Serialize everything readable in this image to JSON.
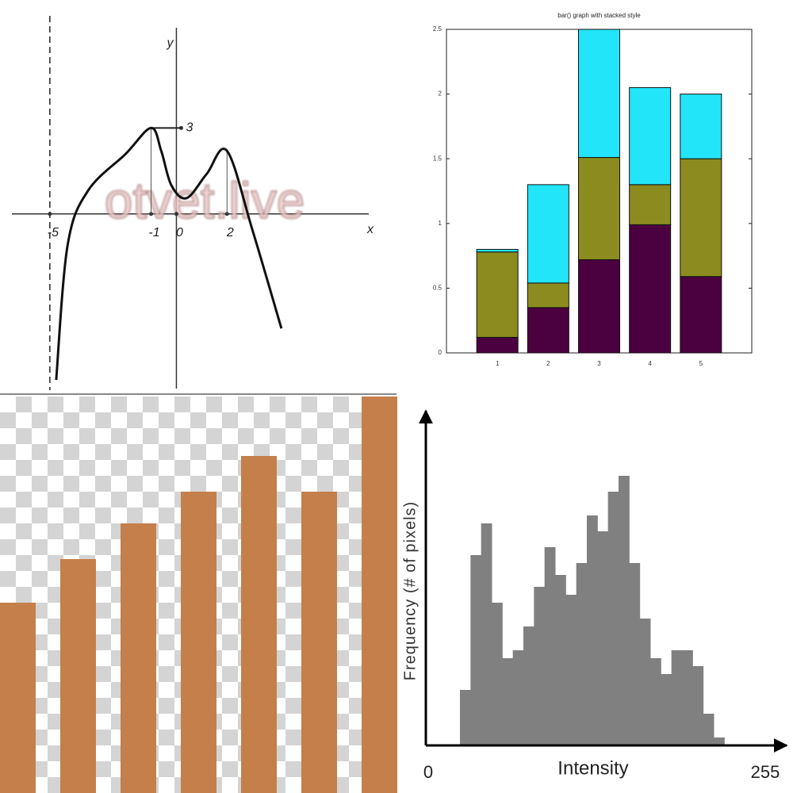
{
  "chart_data": [
    {
      "type": "line",
      "x_label": "x",
      "y_label": "y",
      "watermark": "otvet.live",
      "x": [
        -4.75,
        -4.3,
        -3.5,
        -2,
        -1,
        -0.6,
        -0.2,
        0.4,
        1.2,
        2,
        3,
        4.15
      ],
      "values": [
        -5.8,
        -1.1,
        0.8,
        2.1,
        3,
        2.2,
        1.0,
        0.55,
        1.4,
        2.2,
        -0.55,
        -4.0
      ],
      "color": "#111111",
      "xlim": [
        -6.5,
        7.6
      ],
      "ylim": [
        -6.1,
        6.5
      ],
      "xticks": [
        -5,
        -1,
        0,
        2
      ],
      "yticks": [
        3
      ],
      "asymptote_x": -5
    },
    {
      "type": "bar",
      "stacked": true,
      "title": "bar() graph with stacked style",
      "categories": [
        "1",
        "2",
        "3",
        "4",
        "5"
      ],
      "series": [
        {
          "color": "#4b003f",
          "values": [
            0.12,
            0.35,
            0.72,
            0.99,
            0.59
          ]
        },
        {
          "color": "#8b8b1f",
          "values": [
            0.66,
            0.19,
            0.79,
            0.31,
            0.91
          ]
        },
        {
          "color": "#22e5fa",
          "values": [
            0.02,
            0.76,
            0.99,
            0.75,
            0.5
          ]
        }
      ],
      "ylim": [
        0,
        2.5
      ],
      "yticks": [
        0,
        0.5,
        1,
        1.5,
        2,
        2.5
      ]
    },
    {
      "type": "bar",
      "background": "checkerboard",
      "categories": [
        null,
        null,
        null,
        null,
        null,
        null,
        null
      ],
      "values": [
        48,
        59,
        68,
        76,
        85,
        76,
        100
      ],
      "color": "#c47f4b"
    },
    {
      "type": "histogram",
      "x_label": "Intensity",
      "y_label": "Frequency (# of pixels)",
      "bins": [
        24,
        32,
        40,
        48,
        56,
        64,
        72,
        80,
        88,
        96,
        104,
        112,
        120,
        128,
        136,
        144,
        152,
        160,
        168,
        176,
        184,
        192,
        200,
        208,
        216,
        224
      ],
      "values": [
        70,
        240,
        280,
        180,
        110,
        120,
        150,
        200,
        250,
        215,
        190,
        230,
        290,
        270,
        320,
        340,
        230,
        160,
        110,
        90,
        120,
        120,
        100,
        40,
        10
      ],
      "color": "#808080",
      "xlim": [
        0,
        255
      ],
      "xticks": [
        0,
        255
      ]
    }
  ]
}
